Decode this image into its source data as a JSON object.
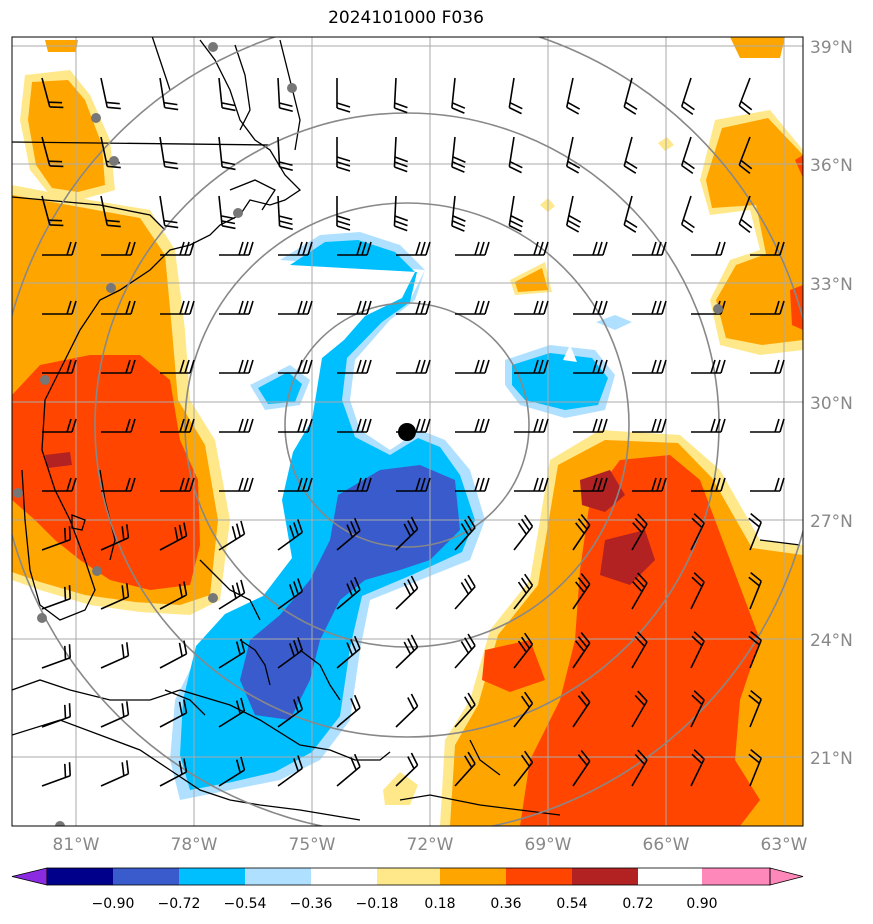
{
  "title": "2024101000 F036",
  "lat_labels": [
    "39°N",
    "36°N",
    "33°N",
    "30°N",
    "27°N",
    "24°N",
    "21°N"
  ],
  "lon_labels": [
    "81°W",
    "78°W",
    "75°W",
    "72°W",
    "69°W",
    "66°W",
    "63°W"
  ],
  "colorbar": {
    "ticks": [
      "−0.90",
      "−0.72",
      "−0.54",
      "−0.36",
      "−0.18",
      "0.18",
      "0.36",
      "0.54",
      "0.72",
      "0.90"
    ],
    "colors": [
      "#8a2be2",
      "#00008b",
      "#3a5bcc",
      "#00bfff",
      "#b0e0ff",
      "#ffffff",
      "#ffe88a",
      "#ffa500",
      "#ff4500",
      "#b22222",
      "#ff88bb"
    ]
  },
  "colors": {
    "land_line": "#000000",
    "grid": "#aaaaaa",
    "range_ring": "#888888",
    "station": "#777777",
    "center_marker": "#000000"
  }
}
